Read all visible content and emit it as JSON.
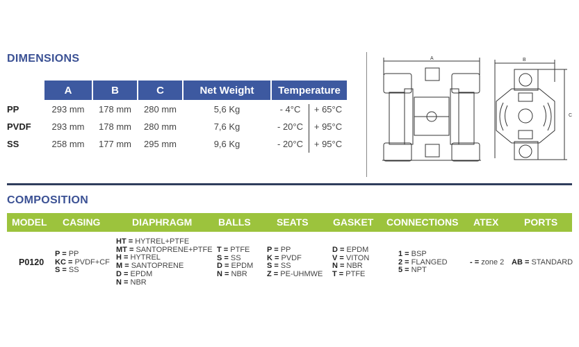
{
  "dimensions": {
    "title": "DIMENSIONS",
    "headers": [
      "A",
      "B",
      "C",
      "Net Weight",
      "Temperature"
    ],
    "rows": [
      {
        "label": "PP",
        "a": "293 mm",
        "b": "178 mm",
        "c": "280 mm",
        "weight": "5,6 Kg",
        "tmin": "- 4°C",
        "tmax": "+ 65°C"
      },
      {
        "label": "PVDF",
        "a": "293 mm",
        "b": "178 mm",
        "c": "280 mm",
        "weight": "7,6 Kg",
        "tmin": "- 20°C",
        "tmax": "+ 95°C"
      },
      {
        "label": "SS",
        "a": "258 mm",
        "b": "177 mm",
        "c": "295 mm",
        "weight": "9,6 Kg",
        "tmin": "- 20°C",
        "tmax": "+ 95°C"
      }
    ],
    "drawing_labels": {
      "a": "A",
      "b": "B",
      "c": "C"
    }
  },
  "composition": {
    "title": "COMPOSITION",
    "headers": [
      "MODEL",
      "CASING",
      "DIAPHRAGM",
      "BALLS",
      "SEATS",
      "GASKET",
      "CONNECTIONS",
      "ATEX",
      "PORTS"
    ],
    "model": "P0120",
    "casing": [
      {
        "k": "P",
        "v": "PP"
      },
      {
        "k": "KC",
        "v": "PVDF+CF"
      },
      {
        "k": "S",
        "v": "SS"
      }
    ],
    "diaphragm": [
      {
        "k": "HT",
        "v": "HYTREL+PTFE"
      },
      {
        "k": "MT",
        "v": "SANTOPRENE+PTFE"
      },
      {
        "k": "H",
        "v": "HYTREL"
      },
      {
        "k": "M",
        "v": "SANTOPRENE"
      },
      {
        "k": "D",
        "v": "EPDM"
      },
      {
        "k": "N",
        "v": "NBR"
      }
    ],
    "balls": [
      {
        "k": "T",
        "v": "PTFE"
      },
      {
        "k": "S",
        "v": "SS"
      },
      {
        "k": "D",
        "v": "EPDM"
      },
      {
        "k": "N",
        "v": "NBR"
      }
    ],
    "seats": [
      {
        "k": "P",
        "v": "PP"
      },
      {
        "k": "K",
        "v": "PVDF"
      },
      {
        "k": "S",
        "v": "SS"
      },
      {
        "k": "Z",
        "v": "PE-UHMWE"
      }
    ],
    "gasket": [
      {
        "k": "D",
        "v": "EPDM"
      },
      {
        "k": "V",
        "v": "VITON"
      },
      {
        "k": "N",
        "v": "NBR"
      },
      {
        "k": "T",
        "v": "PTFE"
      }
    ],
    "connections": [
      {
        "k": "1",
        "v": "BSP"
      },
      {
        "k": "2",
        "v": "FLANGED"
      },
      {
        "k": "5",
        "v": "NPT"
      }
    ],
    "atex": [
      {
        "k": "-",
        "v": "zone 2"
      }
    ],
    "ports": [
      {
        "k": "AB",
        "v": "STANDARD"
      }
    ]
  },
  "colors": {
    "header_blue": "#3d59a0",
    "title_blue": "#3b5194",
    "composition_green": "#9cc33d"
  }
}
